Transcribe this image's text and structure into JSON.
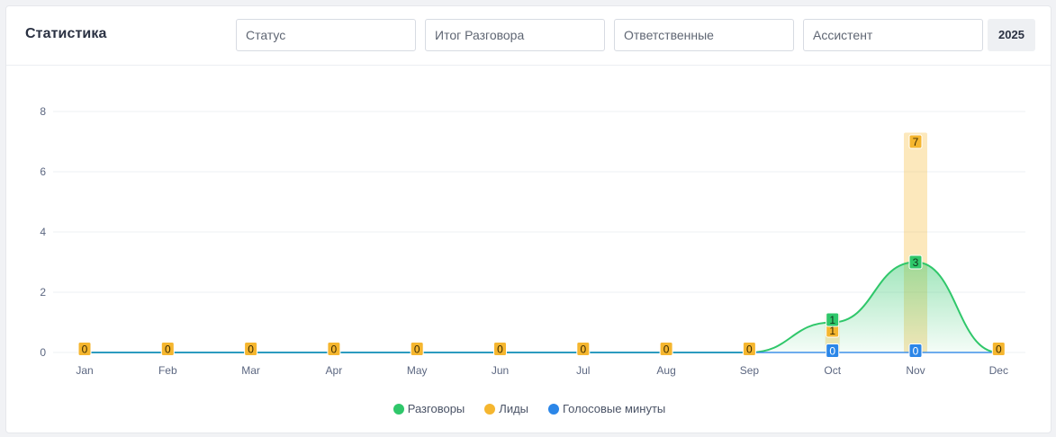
{
  "header": {
    "title": "Статистика",
    "filters": {
      "status_placeholder": "Статус",
      "result_placeholder": "Итог Разговора",
      "responsible_placeholder": "Ответственные",
      "assistant_placeholder": "Ассистент"
    },
    "year": "2025"
  },
  "colors": {
    "conversations": "#2fc76a",
    "leads": "#f5b62f",
    "voice": "#2b86e8"
  },
  "chart_data": {
    "type": "line",
    "categories": [
      "Jan",
      "Feb",
      "Mar",
      "Apr",
      "May",
      "Jun",
      "Jul",
      "Aug",
      "Sep",
      "Oct",
      "Nov",
      "Dec"
    ],
    "ylim": [
      0,
      8
    ],
    "yticks": [
      "0",
      "2",
      "4",
      "6",
      "8"
    ],
    "legend_position": "bottom",
    "series": [
      {
        "name": "Разговоры",
        "kind": "area",
        "values": [
          0,
          0,
          0,
          0,
          0,
          0,
          0,
          0,
          0,
          1,
          3,
          0
        ]
      },
      {
        "name": "Лиды",
        "kind": "bar",
        "values": [
          0,
          0,
          0,
          0,
          0,
          0,
          0,
          0,
          0,
          1,
          7,
          0
        ]
      },
      {
        "name": "Голосовые минуты",
        "kind": "line",
        "values": [
          0,
          0,
          0,
          0,
          0,
          0,
          0,
          0,
          0,
          0,
          0,
          0
        ]
      }
    ]
  }
}
